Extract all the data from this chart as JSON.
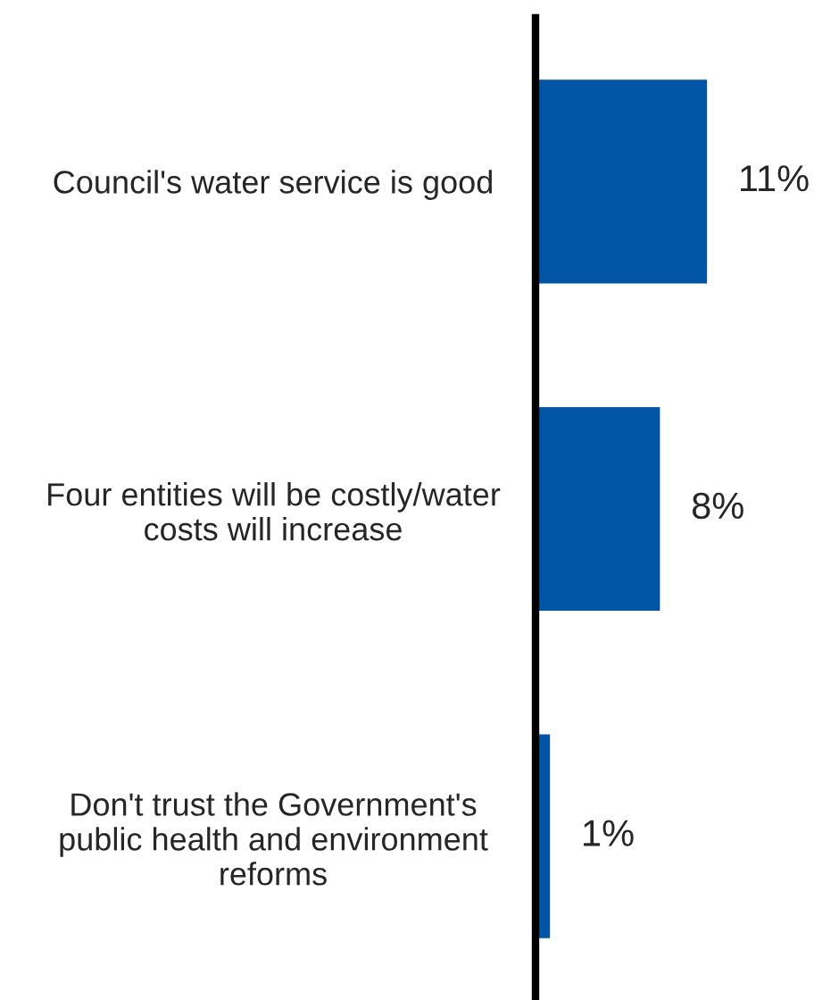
{
  "chart_data": {
    "type": "bar",
    "orientation": "horizontal",
    "categories": [
      "Council's water service is good",
      "Four entities will be costly/water costs will increase",
      "Don't trust the Government's public health and environment reforms"
    ],
    "values": [
      11,
      8,
      1
    ],
    "value_labels": [
      "11%",
      "8%",
      "1%"
    ],
    "color": "#0055a4",
    "grid": false,
    "legend": false
  }
}
